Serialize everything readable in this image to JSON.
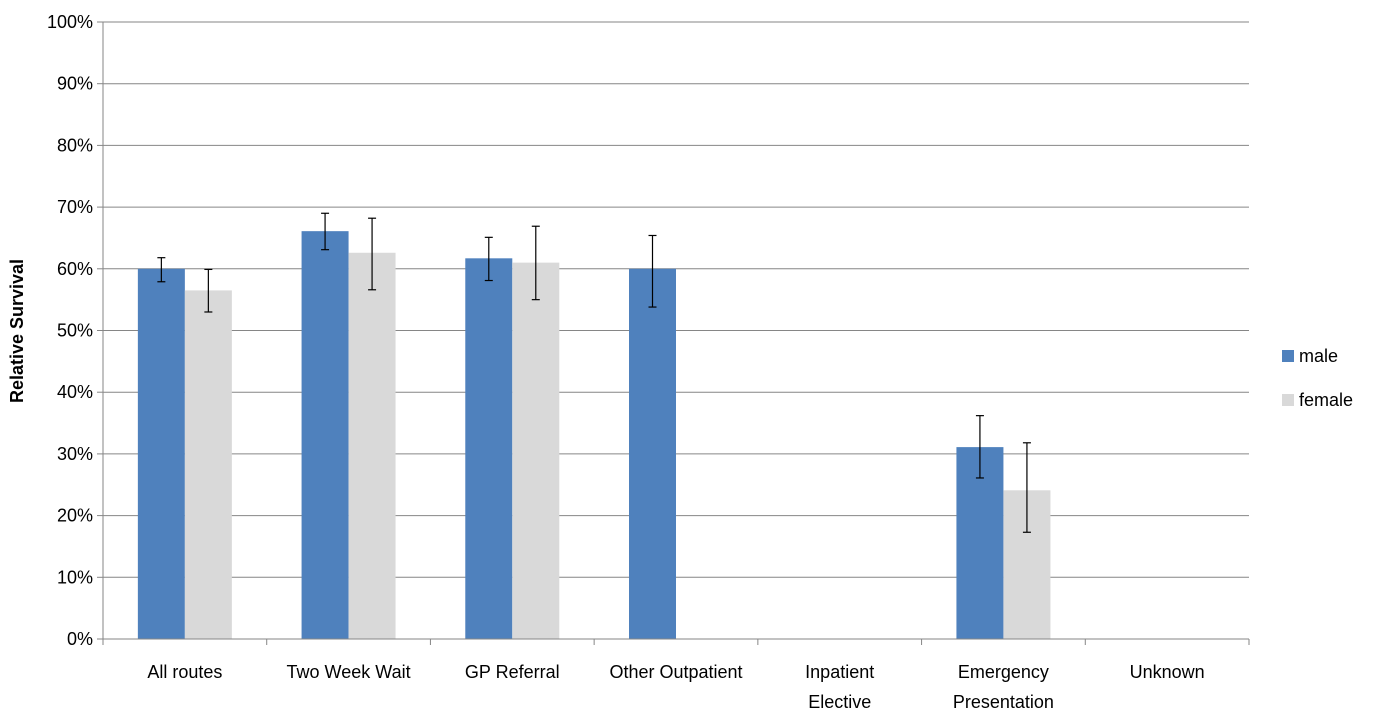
{
  "chart_data": {
    "type": "bar",
    "ylabel": "Relative Survival",
    "xlabel": "",
    "ylim": [
      0,
      100
    ],
    "y_ticks": [
      "0%",
      "10%",
      "20%",
      "30%",
      "40%",
      "50%",
      "60%",
      "70%",
      "80%",
      "90%",
      "100%"
    ],
    "grid": "horizontal",
    "legend_position": "right",
    "categories": [
      [
        "All routes"
      ],
      [
        "Two Week Wait"
      ],
      [
        "GP Referral"
      ],
      [
        "Other Outpatient"
      ],
      [
        "Inpatient",
        "Elective"
      ],
      [
        "Emergency",
        "Presentation"
      ],
      [
        "Unknown"
      ]
    ],
    "series": [
      {
        "name": "male",
        "color": "#4F81BD",
        "values": [
          60.0,
          66.1,
          61.7,
          60.0,
          null,
          31.1,
          null
        ],
        "error_low": [
          57.9,
          63.1,
          58.1,
          53.8,
          null,
          26.1,
          null
        ],
        "error_high": [
          61.8,
          69.0,
          65.1,
          65.4,
          null,
          36.2,
          null
        ]
      },
      {
        "name": "female",
        "color": "#D9D9D9",
        "values": [
          56.5,
          62.6,
          61.0,
          null,
          null,
          24.1,
          null
        ],
        "error_low": [
          53.0,
          56.6,
          55.0,
          null,
          null,
          17.3,
          null
        ],
        "error_high": [
          59.9,
          68.2,
          66.9,
          null,
          null,
          31.8,
          null
        ]
      }
    ]
  }
}
